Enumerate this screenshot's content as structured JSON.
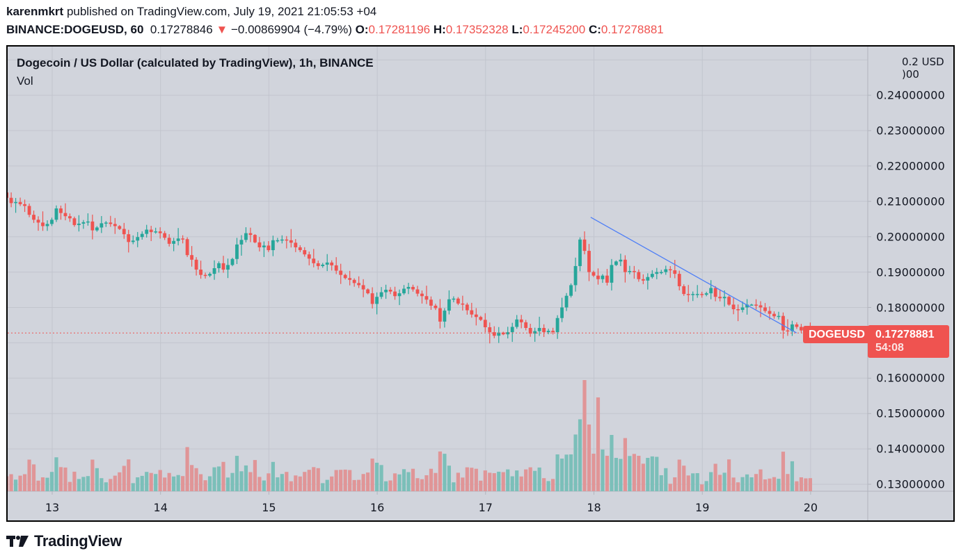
{
  "header": {
    "author": "karenmkrt",
    "published_text": " published on TradingView.com, July 19, 2021 21:05:53 +04",
    "symbol_interval": "BINANCE:DOGEUSD, 60",
    "last_price": "0.17278846",
    "change_arrow": "▼",
    "change": "−0.00869904 (−4.79%)",
    "open_label": "O:",
    "open": "0.17281196",
    "high_label": "H:",
    "high": "0.17352328",
    "low_label": "L:",
    "low": "0.17245200",
    "close_label": "C:",
    "close": "0.17278881"
  },
  "legend": {
    "title": "Dogecoin / US Dollar (calculated by TradingView), 1h, BINANCE",
    "volume_label": "Vol"
  },
  "price_axis": {
    "currency": "USD",
    "top_partial_label": "0.2",
    "top_partial_suffix": ")00",
    "ticks": [
      "0.24000000",
      "0.23000000",
      "0.22000000",
      "0.21000000",
      "0.20000000",
      "0.19000000",
      "0.18000000",
      "0.16000000",
      "0.15000000",
      "0.14000000",
      "0.13000000"
    ]
  },
  "time_axis": {
    "ticks": [
      "13",
      "14",
      "15",
      "16",
      "17",
      "18",
      "19",
      "20"
    ]
  },
  "last_price_marker": {
    "symbol": "DOGEUSD",
    "price": "0.17278881",
    "countdown": "54:08"
  },
  "colors": {
    "up": "#26a69a",
    "down": "#ef5350",
    "vol_up": "#7bbfb9",
    "vol_down": "#e09597",
    "trendline": "#4f7ff6",
    "background": "#d1d4dc",
    "grid": "#c2c5ce"
  },
  "footer": {
    "brand": "TradingView"
  },
  "chart_data": {
    "type": "candlestick",
    "title": "Dogecoin / US Dollar (calculated by TradingView), 1h, BINANCE",
    "xlabel": "",
    "ylabel": "USD",
    "ylim": [
      0.1275,
      0.2495
    ],
    "x_ticks": [
      "13",
      "14",
      "15",
      "16",
      "17",
      "18",
      "19",
      "20"
    ],
    "interval": "1h",
    "grid": true,
    "last_price": 0.17278881,
    "trendline": {
      "from": {
        "day": 17.97,
        "price": 0.2055
      },
      "to": {
        "day": 19.87,
        "price": 0.1728
      },
      "color": "#4f7ff6"
    },
    "start_day": 12.58,
    "hours_per_candle": 1,
    "closes": [
      0.211,
      0.2095,
      0.2098,
      0.2092,
      0.2087,
      0.2062,
      0.2048,
      0.204,
      0.203,
      0.2036,
      0.2048,
      0.208,
      0.2067,
      0.2058,
      0.2052,
      0.2033,
      0.2037,
      0.2041,
      0.2043,
      0.2018,
      0.2026,
      0.2038,
      0.204,
      0.2036,
      0.203,
      0.2022,
      0.2007,
      0.1985,
      0.1989,
      0.1999,
      0.2008,
      0.202,
      0.2013,
      0.2015,
      0.201,
      0.1997,
      0.198,
      0.1988,
      0.1995,
      0.1993,
      0.1948,
      0.1935,
      0.1907,
      0.1892,
      0.189,
      0.1895,
      0.1911,
      0.1925,
      0.1907,
      0.192,
      0.1937,
      0.1978,
      0.1991,
      0.201,
      0.2005,
      0.1984,
      0.197,
      0.1975,
      0.1962,
      0.199,
      0.199,
      0.1992,
      0.199,
      0.1983,
      0.197,
      0.1962,
      0.195,
      0.1938,
      0.1925,
      0.1917,
      0.1921,
      0.1927,
      0.1919,
      0.1904,
      0.1892,
      0.1883,
      0.1878,
      0.1869,
      0.1863,
      0.1851,
      0.184,
      0.181,
      0.183,
      0.1843,
      0.185,
      0.1845,
      0.1832,
      0.184,
      0.1853,
      0.1858,
      0.1851,
      0.1839,
      0.1832,
      0.1822,
      0.1805,
      0.1798,
      0.176,
      0.1791,
      0.1823,
      0.1825,
      0.1811,
      0.1808,
      0.1792,
      0.178,
      0.1773,
      0.1765,
      0.1744,
      0.173,
      0.172,
      0.1729,
      0.1724,
      0.173,
      0.1745,
      0.1766,
      0.1758,
      0.1742,
      0.1726,
      0.1733,
      0.1742,
      0.173,
      0.1734,
      0.173,
      0.177,
      0.18,
      0.1833,
      0.1863,
      0.1917,
      0.1992,
      0.196,
      0.19,
      0.189,
      0.188,
      0.189,
      0.187,
      0.192,
      0.193,
      0.1935,
      0.19,
      0.1903,
      0.19,
      0.188,
      0.1876,
      0.1886,
      0.1895,
      0.19,
      0.19,
      0.1908,
      0.1905,
      0.1895,
      0.186,
      0.1838,
      0.1835,
      0.1838,
      0.1838,
      0.1836,
      0.184,
      0.1855,
      0.183,
      0.1826,
      0.183,
      0.1808,
      0.1795,
      0.1793,
      0.18,
      0.1808,
      0.1808,
      0.1806,
      0.18,
      0.179,
      0.1782,
      0.1775,
      0.1776,
      0.1735,
      0.1733,
      0.1752,
      0.1745,
      0.1735,
      0.173,
      0.1728
    ]
  }
}
